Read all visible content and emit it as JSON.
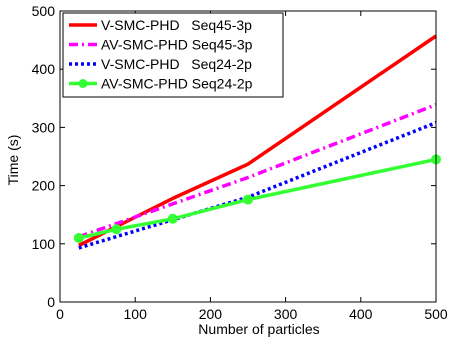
{
  "chart_data": {
    "type": "line",
    "title": "",
    "xlabel": "Number of particles",
    "ylabel": "Time (s)",
    "xlim": [
      0,
      500
    ],
    "ylim": [
      0,
      500
    ],
    "xticks": [
      0,
      100,
      200,
      300,
      400,
      500
    ],
    "yticks": [
      0,
      100,
      200,
      300,
      400,
      500
    ],
    "grid": false,
    "legend_position": "top-left",
    "series": [
      {
        "name": "V-SMC-PHD   Seq45-3p",
        "color": "#ff0000",
        "style": "solid",
        "marker": "none",
        "x": [
          25,
          150,
          250,
          500
        ],
        "y": [
          97,
          178,
          237,
          457
        ]
      },
      {
        "name": "AV-SMC-PHD Seq45-3p",
        "color": "#ff00ff",
        "style": "dash-dot",
        "marker": "none",
        "x": [
          25,
          250,
          500
        ],
        "y": [
          112,
          214,
          339
        ]
      },
      {
        "name": "V-SMC-PHD   Seq24-2p",
        "color": "#0000ff",
        "style": "dotted",
        "marker": "none",
        "x": [
          25,
          250,
          500
        ],
        "y": [
          93,
          180,
          308
        ]
      },
      {
        "name": "AV-SMC-PHD Seq24-2p",
        "color": "#33ff33",
        "style": "solid",
        "marker": "circle",
        "x": [
          25,
          75,
          150,
          250,
          500
        ],
        "y": [
          110,
          125,
          143,
          176,
          245
        ]
      }
    ]
  }
}
